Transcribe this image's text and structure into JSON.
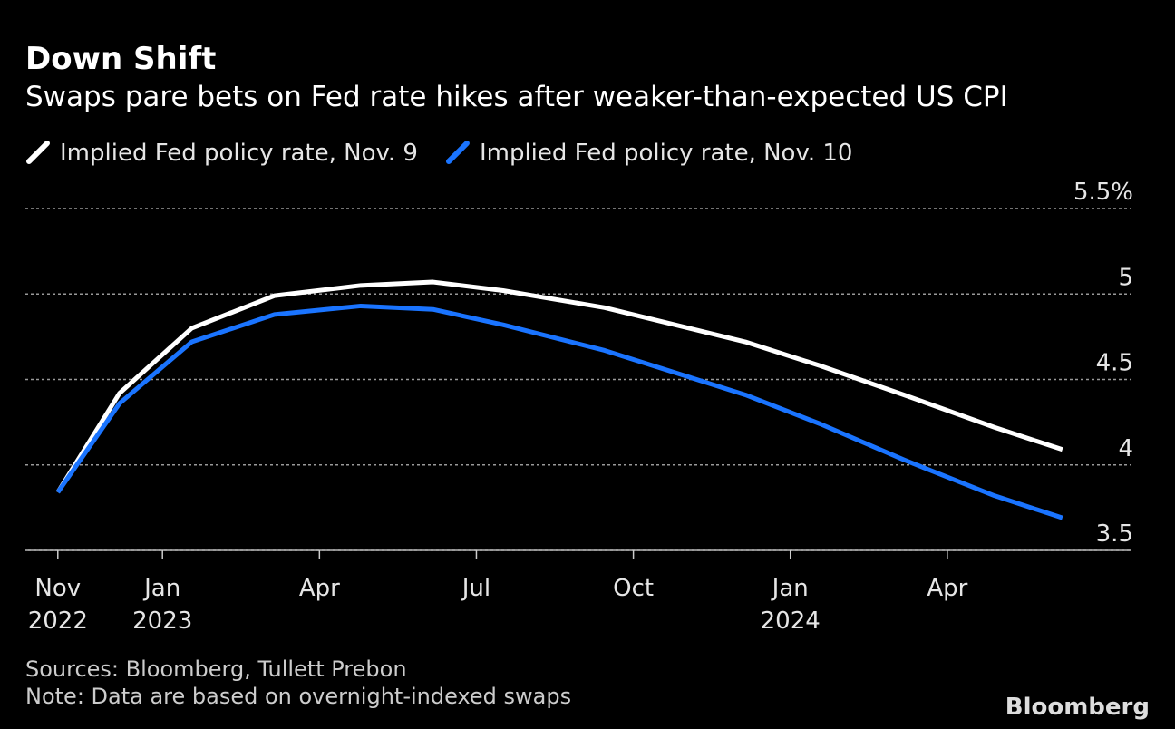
{
  "chart_data": {
    "type": "line",
    "title": "Down Shift",
    "subtitle": "Swaps pare bets on Fed rate hikes after weaker-than-expected US CPI",
    "series": [
      {
        "name": "Implied Fed policy rate, Nov. 9",
        "color": "#ffffff",
        "x": [
          0,
          1.18,
          2.56,
          4.14,
          5.79,
          7.17,
          8.51,
          10.45,
          13.14,
          14.57,
          16.17,
          17.9,
          19.2
        ],
        "values": [
          3.84,
          4.42,
          4.8,
          4.99,
          5.05,
          5.07,
          5.02,
          4.92,
          4.72,
          4.58,
          4.41,
          4.22,
          4.09
        ]
      },
      {
        "name": "Implied Fed policy rate, Nov. 10",
        "color": "#1a74ff",
        "x": [
          0,
          1.18,
          2.56,
          4.14,
          5.79,
          7.17,
          8.51,
          10.45,
          13.14,
          14.57,
          16.17,
          17.9,
          19.2
        ],
        "values": [
          3.84,
          4.36,
          4.72,
          4.88,
          4.93,
          4.91,
          4.82,
          4.67,
          4.41,
          4.24,
          4.03,
          3.82,
          3.69
        ]
      }
    ],
    "xlim": [
      -0.62,
      20.52
    ],
    "xticks": [
      {
        "value": 0,
        "label": "Nov 2022"
      },
      {
        "value": 2,
        "label": "Jan 2023"
      },
      {
        "value": 5,
        "label": "Apr"
      },
      {
        "value": 8,
        "label": "Jul"
      },
      {
        "value": 11,
        "label": "Oct"
      },
      {
        "value": 14,
        "label": "Jan 2024"
      },
      {
        "value": 17,
        "label": "Apr"
      }
    ],
    "ylim": [
      3.5,
      5.5
    ],
    "yticks": [
      3.5,
      4.0,
      4.5,
      5.0,
      {
        "value": 5.5,
        "label": "5.5%"
      }
    ],
    "grid": true,
    "source": "Sources: Bloomberg, Tullett Prebon",
    "note": "Note: Data are based on overnight-indexed swaps",
    "brand": "Bloomberg"
  }
}
